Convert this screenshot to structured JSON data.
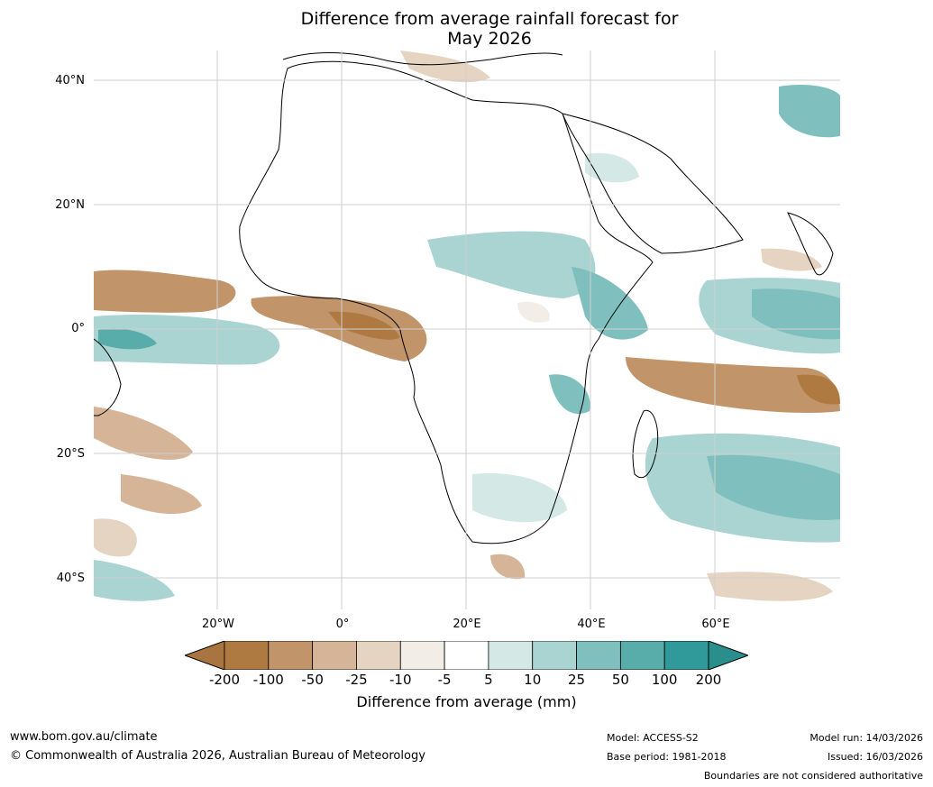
{
  "title": {
    "line1": "Difference from average rainfall forecast for",
    "line2": "May 2026"
  },
  "map": {
    "lat_labels": [
      "40°N",
      "20°N",
      "0°",
      "20°S",
      "40°S"
    ],
    "lon_labels": [
      "20°W",
      "0°",
      "20°E",
      "40°E",
      "60°E"
    ]
  },
  "colorbar": {
    "ticks": [
      "-200",
      "-100",
      "-50",
      "-25",
      "-10",
      "-5",
      "5",
      "10",
      "25",
      "50",
      "100",
      "200"
    ],
    "colors": [
      "#A87540",
      "#AF7A42",
      "#C29469",
      "#D5B498",
      "#E6D4C2",
      "#F2EDE6",
      "#FFFFFF",
      "#D4E8E6",
      "#A9D4D2",
      "#7FC0BE",
      "#58ACAA",
      "#30999A",
      "#2A8E8C"
    ],
    "label": "Difference from average (mm)"
  },
  "footer": {
    "website": "www.bom.gov.au/climate",
    "copyright": "© Commonwealth of Australia 2026, Australian Bureau of Meteorology",
    "model": "Model: ACCESS-S2",
    "base_period": "Base period: 1981-2018",
    "model_run": "Model run: 14/03/2026",
    "issued": "Issued: 16/03/2026",
    "disclaimer": "Boundaries are not considered authoritative"
  }
}
